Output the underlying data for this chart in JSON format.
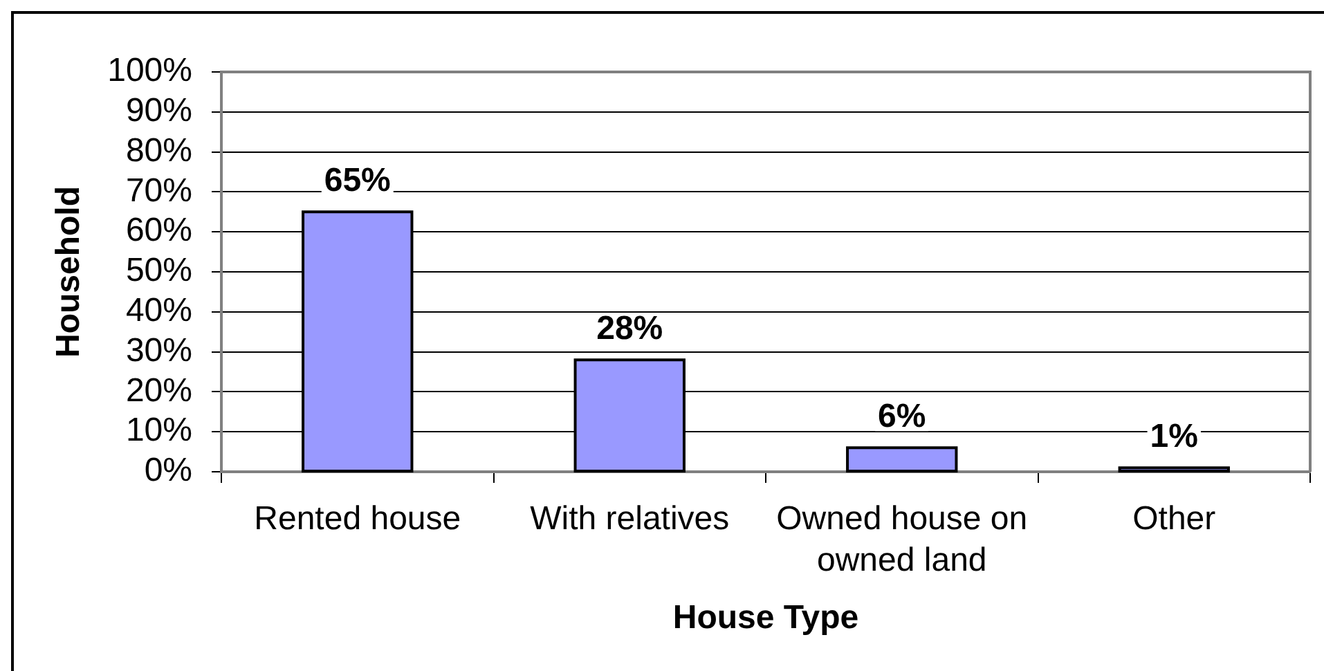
{
  "chart_data": {
    "type": "bar",
    "xlabel": "House Type",
    "ylabel": "Household",
    "categories": [
      "Rented house",
      "With relatives",
      "Owned house on owned land",
      "Other"
    ],
    "values": [
      65,
      28,
      6,
      1
    ],
    "color": "#9999ff",
    "value_labels": [
      "65%",
      "28%",
      "6%",
      "1%"
    ],
    "ylim": [
      0,
      100
    ],
    "yticks": [
      {
        "value": 0,
        "label": "0%"
      },
      {
        "value": 10,
        "label": "10%"
      },
      {
        "value": 20,
        "label": "20%"
      },
      {
        "value": 30,
        "label": "30%"
      },
      {
        "value": 40,
        "label": "40%"
      },
      {
        "value": 50,
        "label": "50%"
      },
      {
        "value": 60,
        "label": "60%"
      },
      {
        "value": 70,
        "label": "70%"
      },
      {
        "value": 80,
        "label": "80%"
      },
      {
        "value": 90,
        "label": "90%"
      },
      {
        "value": 100,
        "label": "100%"
      }
    ],
    "grid": "y"
  }
}
